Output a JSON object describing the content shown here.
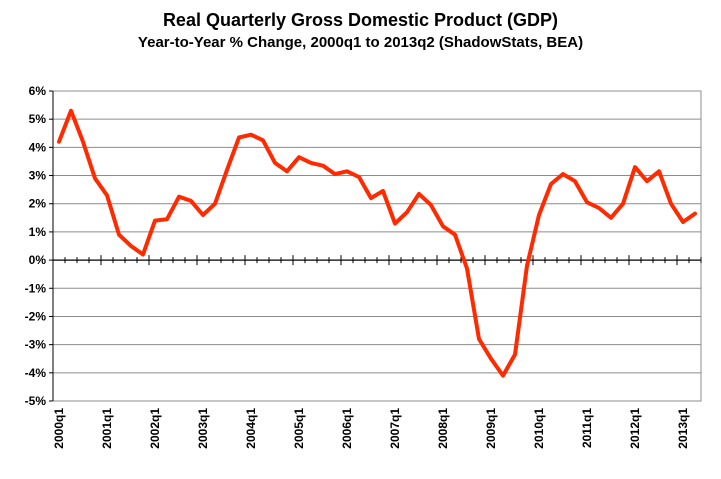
{
  "chart_data": {
    "type": "line",
    "title": "Real Quarterly Gross Domestic Product (GDP)",
    "subtitle": "Year-to-Year % Change, 2000q1 to 2013q2 (ShadowStats, BEA)",
    "xlabel": "",
    "ylabel": "",
    "ylim": [
      -5,
      6
    ],
    "y_ticks": [
      "-5%",
      "-4%",
      "-3%",
      "-2%",
      "-1%",
      "0%",
      "1%",
      "2%",
      "3%",
      "4%",
      "5%",
      "6%"
    ],
    "x_tick_labels": [
      "2000q1",
      "2001q1",
      "2002q1",
      "2003q1",
      "2004q1",
      "2005q1",
      "2006q1",
      "2007q1",
      "2008q1",
      "2009q1",
      "2010q1",
      "2011q1",
      "2012q1",
      "2013q1"
    ],
    "x": [
      "2000q1",
      "2000q2",
      "2000q3",
      "2000q4",
      "2001q1",
      "2001q2",
      "2001q3",
      "2001q4",
      "2002q1",
      "2002q2",
      "2002q3",
      "2002q4",
      "2003q1",
      "2003q2",
      "2003q3",
      "2003q4",
      "2004q1",
      "2004q2",
      "2004q3",
      "2004q4",
      "2005q1",
      "2005q2",
      "2005q3",
      "2005q4",
      "2006q1",
      "2006q2",
      "2006q3",
      "2006q4",
      "2007q1",
      "2007q2",
      "2007q3",
      "2007q4",
      "2008q1",
      "2008q2",
      "2008q3",
      "2008q4",
      "2009q1",
      "2009q2",
      "2009q3",
      "2009q4",
      "2010q1",
      "2010q2",
      "2010q3",
      "2010q4",
      "2011q1",
      "2011q2",
      "2011q3",
      "2011q4",
      "2012q1",
      "2012q2",
      "2012q3",
      "2012q4",
      "2013q1",
      "2013q2"
    ],
    "series": [
      {
        "color": "#ff2a00",
        "values": [
          4.2,
          5.3,
          4.2,
          2.9,
          2.3,
          0.9,
          0.5,
          0.2,
          1.4,
          1.45,
          2.25,
          2.1,
          1.6,
          2.0,
          3.2,
          4.35,
          4.45,
          4.25,
          3.45,
          3.15,
          3.65,
          3.45,
          3.35,
          3.05,
          3.15,
          2.95,
          2.2,
          2.45,
          1.3,
          1.7,
          2.35,
          1.95,
          1.2,
          0.9,
          -0.3,
          -2.8,
          -3.5,
          -4.1,
          -3.35,
          -0.2,
          1.6,
          2.7,
          3.05,
          2.8,
          2.05,
          1.85,
          1.5,
          2.0,
          3.3,
          2.8,
          3.15,
          2.0,
          1.35,
          1.65
        ]
      }
    ],
    "grid": "horizontal",
    "legend": "none"
  }
}
